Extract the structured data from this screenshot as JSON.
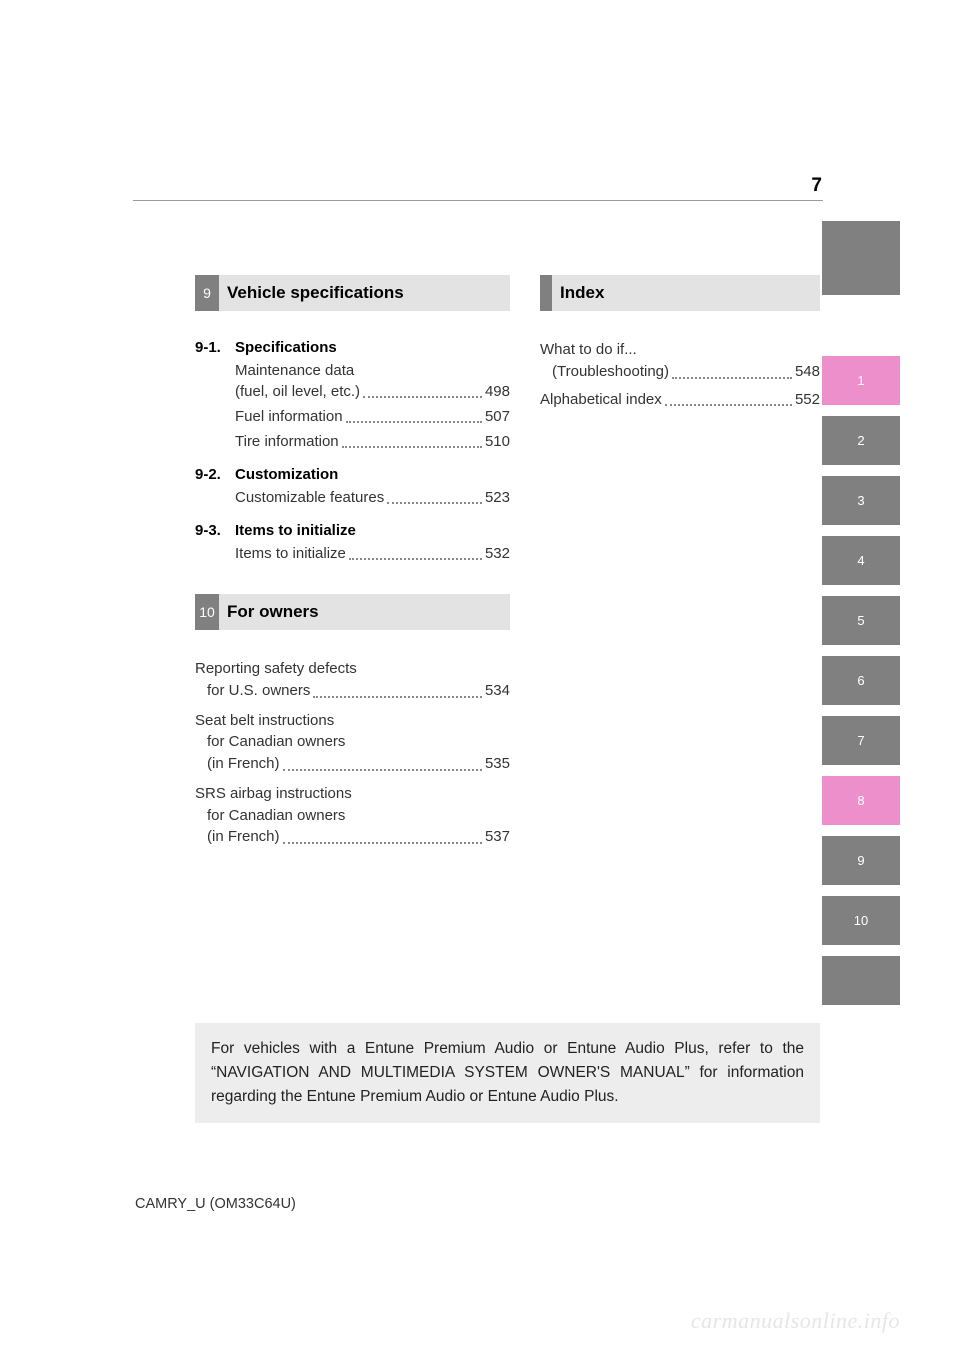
{
  "page_number": "7",
  "left_column": {
    "section9": {
      "num": "9",
      "title": "Vehicle specifications",
      "subs": [
        {
          "num": "9-1.",
          "title": "Specifications",
          "entries": [
            {
              "label": "Maintenance data\n  (fuel, oil level, etc.)",
              "page": "498"
            },
            {
              "label": "Fuel information",
              "page": "507"
            },
            {
              "label": "Tire information",
              "page": "510"
            }
          ]
        },
        {
          "num": "9-2.",
          "title": "Customization",
          "entries": [
            {
              "label": "Customizable features",
              "page": "523"
            }
          ]
        },
        {
          "num": "9-3.",
          "title": "Items to initialize",
          "entries": [
            {
              "label": "Items to initialize",
              "page": "532"
            }
          ]
        }
      ]
    },
    "section10": {
      "num": "10",
      "title": "For owners",
      "entries": [
        {
          "label_lines": [
            "Reporting safety defects",
            "for U.S. owners"
          ],
          "page": "534"
        },
        {
          "label_lines": [
            "Seat belt instructions",
            "for Canadian owners",
            "(in French)"
          ],
          "page": "535"
        },
        {
          "label_lines": [
            "SRS airbag instructions",
            "for Canadian owners",
            "(in French)"
          ],
          "page": "537"
        }
      ]
    }
  },
  "right_column": {
    "index_section": {
      "title": "Index",
      "entries": [
        {
          "label_lines": [
            "What to do if...",
            "(Troubleshooting)"
          ],
          "page": "548"
        },
        {
          "label_lines": [
            "Alphabetical index"
          ],
          "page": "552"
        }
      ]
    }
  },
  "side_tabs": [
    {
      "label": "1",
      "bg": "#ed8fcb"
    },
    {
      "label": "2",
      "bg": "#808080"
    },
    {
      "label": "3",
      "bg": "#808080"
    },
    {
      "label": "4",
      "bg": "#808080"
    },
    {
      "label": "5",
      "bg": "#808080"
    },
    {
      "label": "6",
      "bg": "#808080"
    },
    {
      "label": "7",
      "bg": "#808080"
    },
    {
      "label": "8",
      "bg": "#ed8fcb"
    },
    {
      "label": "9",
      "bg": "#808080"
    },
    {
      "label": "10",
      "bg": "#808080"
    },
    {
      "label": "",
      "bg": "#808080"
    }
  ],
  "note_box": "For vehicles with a Entune Premium Audio or Entune Audio Plus, refer to the “NAVIGATION AND MULTIMEDIA SYSTEM OWNER'S MANUAL” for information regarding the Entune Premium Audio or Entune Audio Plus.",
  "footer_code": "CAMRY_U (OM33C64U)",
  "watermark": "carmanualsonline.info",
  "colors": {
    "gray": "#808080",
    "light_gray": "#e3e3e3",
    "pink": "#ed8fcb",
    "note_bg": "#ededed"
  }
}
